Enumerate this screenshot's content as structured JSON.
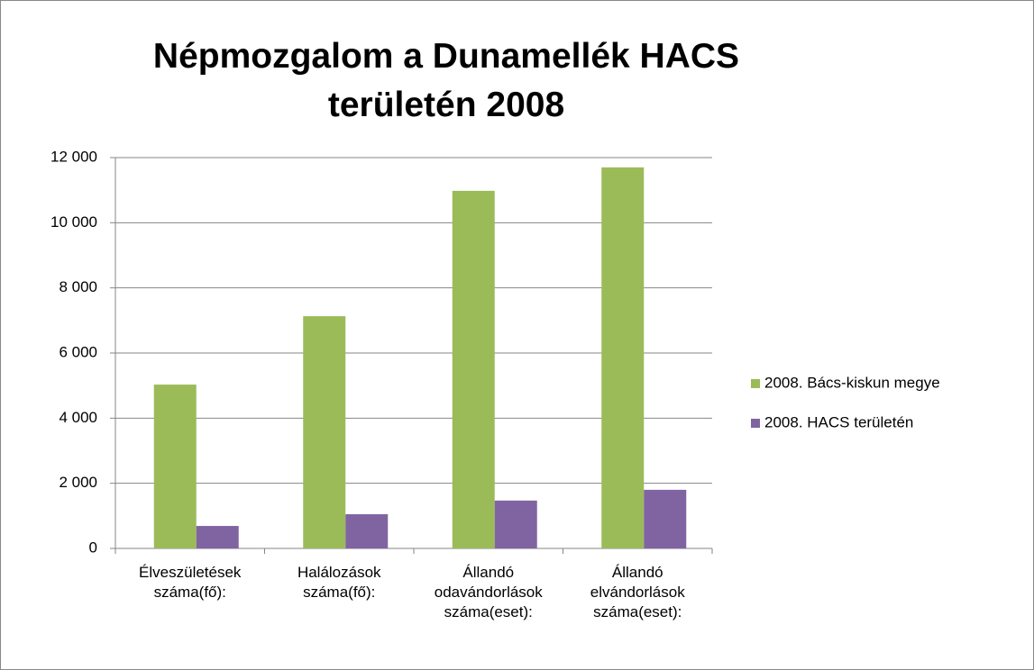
{
  "chart_data": {
    "type": "bar",
    "title": "Népmozgalom a Dunamellék HACS területén 2008",
    "categories": [
      "Élveszületések száma(fő):",
      "Halálozások száma(fő):",
      "Állandó odavándorlások száma(eset):",
      "Állandó elvándorlások száma(eset):"
    ],
    "series": [
      {
        "name": "2008. Bács-kiskun megye",
        "color": "#9bbb59",
        "values": [
          5030,
          7130,
          10980,
          11700
        ]
      },
      {
        "name": "2008. HACS területén",
        "color": "#8064a2",
        "values": [
          690,
          1050,
          1470,
          1800
        ]
      }
    ],
    "ylim": [
      0,
      12000
    ],
    "yticks": [
      0,
      {
        "value": 2000,
        "label": "2 000"
      },
      {
        "value": 4000,
        "label": "4 000"
      },
      {
        "value": 6000,
        "label": "6 000"
      },
      {
        "value": 8000,
        "label": "8 000"
      },
      {
        "value": 10000,
        "label": "10 000"
      },
      {
        "value": 12000,
        "label": "12 000"
      }
    ],
    "grid": true,
    "legend": "right"
  }
}
